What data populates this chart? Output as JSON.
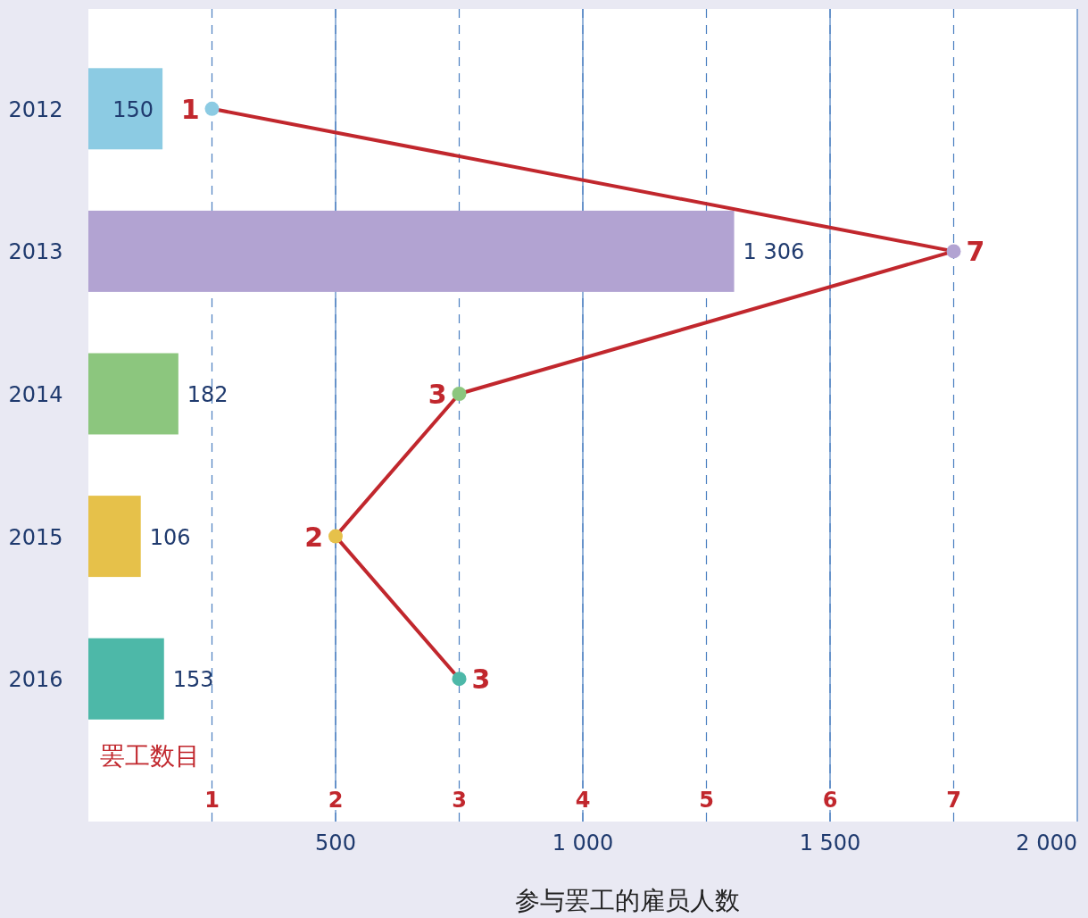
{
  "chart_data": {
    "type": "bar",
    "orientation": "horizontal",
    "categories": [
      "2012",
      "2013",
      "2014",
      "2015",
      "2016"
    ],
    "series": [
      {
        "colors": [
          "#8ccbe3",
          "#b2a3d2",
          "#8cc67e",
          "#e6c14a",
          "#4db8a8"
        ],
        "values": [
          150,
          1306,
          182,
          106,
          153
        ],
        "value_labels": [
          "150",
          "1 306",
          "182",
          "106",
          "153"
        ]
      },
      {
        "type": "line",
        "axis": "x2",
        "color": "#c1272d",
        "values": [
          1,
          7,
          3,
          2,
          3
        ],
        "value_labels": [
          "1",
          "7",
          "3",
          "2",
          "3"
        ]
      }
    ],
    "xlim": [
      0,
      2000
    ],
    "xticks": [
      500,
      {
        "value": 1000,
        "label": "1 000"
      },
      {
        "value": 1500,
        "label": "1 500"
      },
      {
        "value": 2000,
        "label": "2 000"
      }
    ],
    "x2lim": [
      0,
      8
    ],
    "x2ticks": [
      1,
      2,
      3,
      4,
      5,
      6,
      7
    ],
    "xlabel": "参与罢工的雇员人数",
    "x2label": "罢工数目",
    "grid": true,
    "marker": "circle",
    "line_style": "solid"
  }
}
